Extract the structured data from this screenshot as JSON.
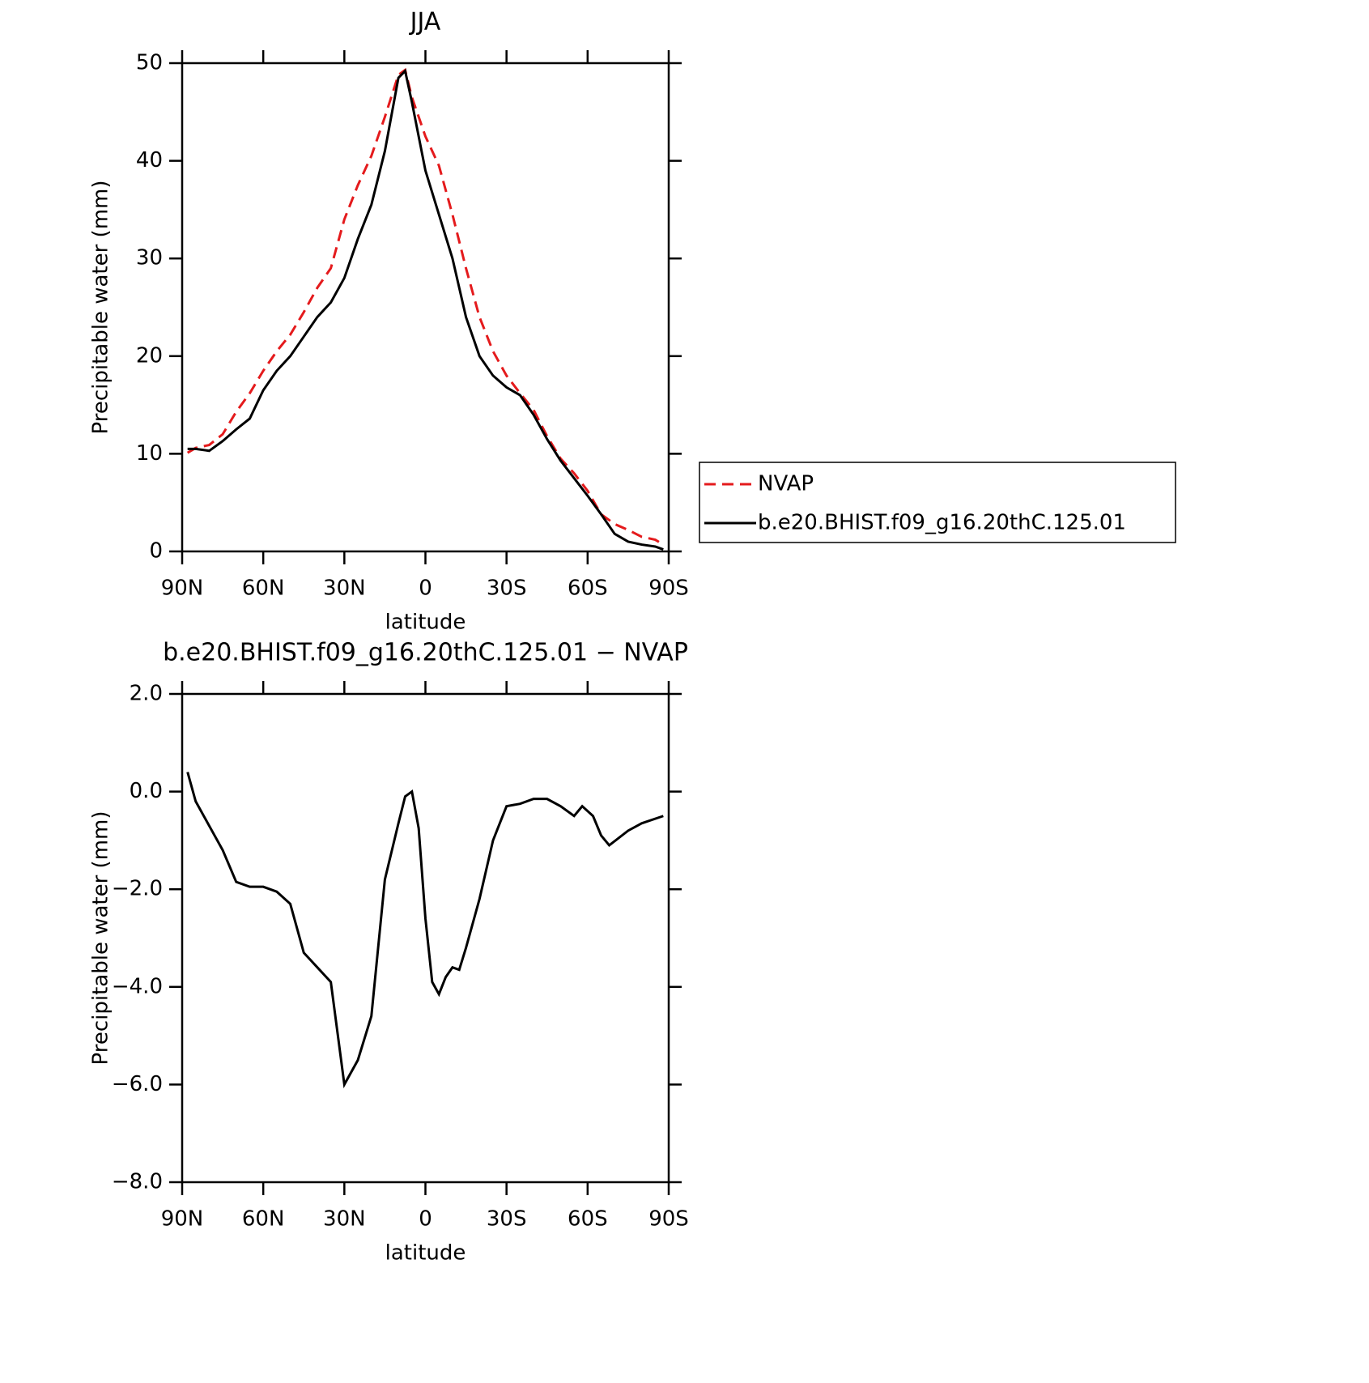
{
  "chart_data": [
    {
      "type": "line",
      "title": "JJA",
      "xlabel": "latitude",
      "ylabel": "Precipitable water (mm)",
      "xlim": [
        90,
        -90
      ],
      "ylim": [
        0,
        50
      ],
      "xticks": [
        {
          "value": 90,
          "label": "90N"
        },
        {
          "value": 60,
          "label": "60N"
        },
        {
          "value": 30,
          "label": "30N"
        },
        0,
        {
          "value": -30,
          "label": "30S"
        },
        {
          "value": -60,
          "label": "60S"
        },
        {
          "value": -90,
          "label": "90S"
        }
      ],
      "yticks": [
        0,
        10,
        20,
        30,
        40,
        50
      ],
      "legend": "outside-right",
      "x": [
        88,
        85,
        80,
        75,
        70,
        65,
        60,
        55,
        50,
        45,
        40,
        35,
        30,
        25,
        20,
        15,
        10,
        7.5,
        5,
        0,
        -5,
        -10,
        -15,
        -20,
        -25,
        -30,
        -35,
        -40,
        -45,
        -50,
        -55,
        -60,
        -65,
        -70,
        -75,
        -80,
        -85,
        -88
      ],
      "series": [
        {
          "name": "NVAP",
          "color": "#e41a1c",
          "style": "dashed",
          "values": [
            10.1,
            10.6,
            10.9,
            12,
            14.3,
            16.2,
            18.5,
            20.5,
            22.2,
            24.5,
            27,
            29,
            34,
            37.5,
            40.5,
            44.5,
            48.8,
            49.3,
            46.5,
            42.5,
            39.5,
            34.5,
            29,
            24,
            20.5,
            18,
            16.2,
            14.5,
            11.8,
            9.5,
            8,
            6.2,
            3.8,
            2.8,
            2.2,
            1.5,
            1.2,
            0.7
          ]
        },
        {
          "name": "b.e20.BHIST.f09_g16.20thC.125.01",
          "color": "#000000",
          "style": "solid",
          "values": [
            10.5,
            10.5,
            10.3,
            11.3,
            12.5,
            13.6,
            16.5,
            18.5,
            20,
            22,
            24,
            25.5,
            28,
            32,
            35.5,
            41,
            48.5,
            49.2,
            46,
            39,
            34.5,
            30,
            24,
            20,
            18,
            16.8,
            16,
            14,
            11.5,
            9.3,
            7.5,
            5.7,
            3.8,
            1.8,
            1.0,
            0.7,
            0.5,
            0.2
          ]
        }
      ]
    },
    {
      "type": "line",
      "title": "b.e20.BHIST.f09_g16.20thC.125.01 − NVAP",
      "xlabel": "latitude",
      "ylabel": "Precipitable water (mm)",
      "xlim": [
        90,
        -90
      ],
      "ylim": [
        -8,
        2
      ],
      "xticks": [
        {
          "value": 90,
          "label": "90N"
        },
        {
          "value": 60,
          "label": "60N"
        },
        {
          "value": 30,
          "label": "30N"
        },
        0,
        {
          "value": -30,
          "label": "30S"
        },
        {
          "value": -60,
          "label": "60S"
        },
        {
          "value": -90,
          "label": "90S"
        }
      ],
      "yticks": [
        {
          "value": -8,
          "label": "−8.0"
        },
        {
          "value": -6,
          "label": "−6.0"
        },
        {
          "value": -4,
          "label": "−4.0"
        },
        {
          "value": -2,
          "label": "−2.0"
        },
        {
          "value": 0,
          "label": "0.0"
        },
        {
          "value": 2,
          "label": "2.0"
        }
      ],
      "x": [
        88,
        85,
        80,
        75,
        70,
        65,
        60,
        55,
        50,
        45,
        40,
        35,
        30,
        25,
        20,
        15,
        10,
        7.5,
        5,
        2.5,
        0,
        -2.5,
        -5,
        -7.5,
        -10,
        -12.5,
        -15,
        -20,
        -25,
        -30,
        -35,
        -40,
        -45,
        -50,
        -55,
        -58,
        -62,
        -65,
        -68,
        -75,
        -80,
        -88
      ],
      "series": [
        {
          "color": "#000000",
          "style": "solid",
          "values": [
            0.4,
            -0.2,
            -0.7,
            -1.2,
            -1.85,
            -1.95,
            -1.95,
            -2.05,
            -2.3,
            -3.3,
            -3.6,
            -3.9,
            -6.0,
            -5.5,
            -4.6,
            -1.8,
            -0.65,
            -0.1,
            0.0,
            -0.75,
            -2.6,
            -3.9,
            -4.15,
            -3.8,
            -3.6,
            -3.65,
            -3.2,
            -2.2,
            -1.0,
            -0.3,
            -0.25,
            -0.15,
            -0.15,
            -0.3,
            -0.5,
            -0.3,
            -0.5,
            -0.9,
            -1.1,
            -0.8,
            -0.65,
            -0.5
          ]
        }
      ]
    }
  ]
}
